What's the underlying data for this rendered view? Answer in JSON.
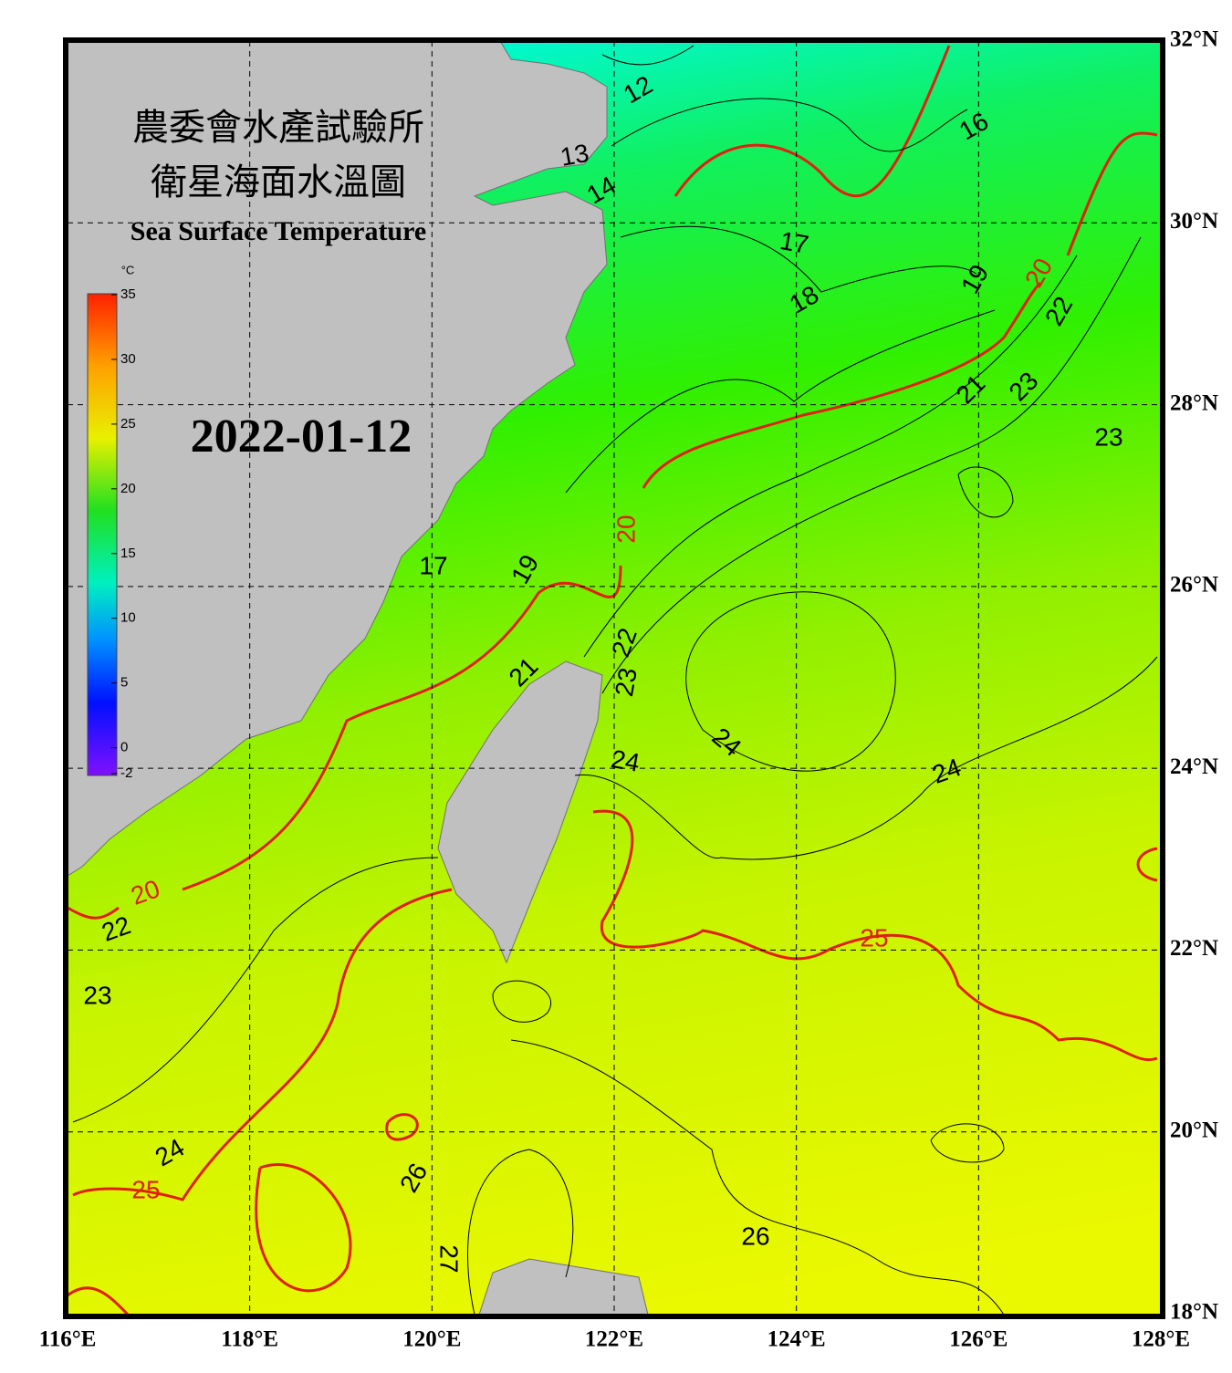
{
  "header": {
    "title_line_1": "農委會水產試驗所",
    "title_line_2": "衛星海面水溫圖",
    "title_english": "Sea Surface Temperature",
    "date": "2022-01-12"
  },
  "colorbar": {
    "unit": "°C",
    "range": [
      -2,
      35
    ],
    "ticks": [
      35,
      30,
      25,
      20,
      15,
      10,
      5,
      0,
      -2
    ]
  },
  "map": {
    "xlim": [
      116,
      128
    ],
    "ylim": [
      18,
      32
    ],
    "xticks": [
      {
        "value": 116,
        "label": "116°E"
      },
      {
        "value": 118,
        "label": "118°E"
      },
      {
        "value": 120,
        "label": "120°E"
      },
      {
        "value": 122,
        "label": "122°E"
      },
      {
        "value": 124,
        "label": "124°E"
      },
      {
        "value": 126,
        "label": "126°E"
      },
      {
        "value": 128,
        "label": "128°E"
      }
    ],
    "yticks": [
      {
        "value": 18,
        "label": "18°N"
      },
      {
        "value": 20,
        "label": "20°N"
      },
      {
        "value": 22,
        "label": "22°N"
      },
      {
        "value": 24,
        "label": "24°N"
      },
      {
        "value": 26,
        "label": "26°N"
      },
      {
        "value": 28,
        "label": "28°N"
      },
      {
        "value": 30,
        "label": "30°N"
      },
      {
        "value": 32,
        "label": "32°N"
      }
    ],
    "contour_labels": [
      12,
      13,
      14,
      16,
      17,
      18,
      19,
      20,
      22,
      21,
      23,
      23,
      17,
      19,
      20,
      22,
      21,
      23,
      24,
      24,
      24,
      25,
      23,
      24,
      25,
      26,
      27,
      26,
      20,
      22
    ]
  }
}
